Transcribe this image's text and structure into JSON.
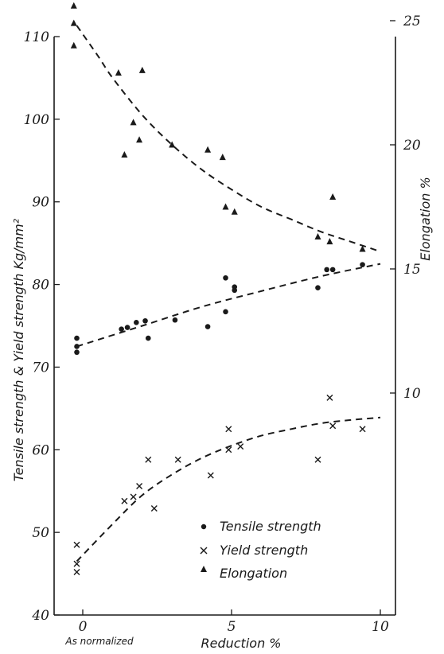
{
  "chart_data": {
    "type": "scatter",
    "title": "",
    "xlabel": "Reduction %",
    "x_sublabel": "As normalized",
    "ylabel_left": "Tensile strength & Yield strength Kg/mm²",
    "ylabel_right": "Elongation %",
    "xlim": [
      -0.5,
      10
    ],
    "ylim_left": [
      40,
      110
    ],
    "ylim_right": [
      5,
      27
    ],
    "x_ticks": [
      "0",
      "5",
      "10"
    ],
    "y_left_ticks": [
      "40",
      "50",
      "60",
      "70",
      "80",
      "90",
      "100",
      "110"
    ],
    "y_right_ticks": [
      "10",
      "15",
      "20",
      "25"
    ],
    "grid": false,
    "legend_position": "bottom-right",
    "series": [
      {
        "name": "Tensile strength",
        "axis": "left",
        "marker": "dot",
        "points": [
          [
            -0.2,
            73.5
          ],
          [
            -0.2,
            72.5
          ],
          [
            -0.2,
            71.8
          ],
          [
            1.3,
            74.6
          ],
          [
            1.5,
            74.8
          ],
          [
            1.8,
            75.4
          ],
          [
            2.1,
            75.6
          ],
          [
            2.2,
            73.5
          ],
          [
            3.1,
            75.7
          ],
          [
            4.2,
            74.9
          ],
          [
            4.8,
            80.8
          ],
          [
            4.8,
            76.7
          ],
          [
            5.1,
            79.7
          ],
          [
            5.1,
            79.3
          ],
          [
            7.9,
            79.6
          ],
          [
            8.2,
            81.8
          ],
          [
            8.4,
            81.8
          ],
          [
            9.4,
            82.4
          ]
        ],
        "fit": [
          [
            -0.2,
            72.5
          ],
          [
            2,
            75
          ],
          [
            4,
            77.3
          ],
          [
            6,
            79.2
          ],
          [
            8,
            81
          ],
          [
            10,
            82.5
          ]
        ]
      },
      {
        "name": "Yield strength",
        "axis": "left",
        "marker": "x",
        "points": [
          [
            -0.2,
            48.5
          ],
          [
            -0.2,
            46.2
          ],
          [
            -0.2,
            45.2
          ],
          [
            1.4,
            53.8
          ],
          [
            1.7,
            54.3
          ],
          [
            1.9,
            55.6
          ],
          [
            2.2,
            58.8
          ],
          [
            2.4,
            52.9
          ],
          [
            3.2,
            58.8
          ],
          [
            4.3,
            56.9
          ],
          [
            4.9,
            62.5
          ],
          [
            4.9,
            60
          ],
          [
            5.3,
            60.4
          ],
          [
            7.9,
            58.8
          ],
          [
            8.3,
            66.3
          ],
          [
            8.4,
            62.9
          ],
          [
            9.4,
            62.5
          ]
        ],
        "fit": [
          [
            -0.2,
            46.5
          ],
          [
            1,
            51
          ],
          [
            2,
            54.5
          ],
          [
            3,
            57
          ],
          [
            4,
            59
          ],
          [
            5,
            60.5
          ],
          [
            6,
            61.7
          ],
          [
            7,
            62.5
          ],
          [
            8,
            63.2
          ],
          [
            9,
            63.6
          ],
          [
            10,
            63.9
          ]
        ]
      },
      {
        "name": "Elongation",
        "axis": "right",
        "marker": "triangle",
        "points": [
          [
            -0.3,
            25.6
          ],
          [
            -0.3,
            24.9
          ],
          [
            -0.3,
            24
          ],
          [
            1.2,
            22.9
          ],
          [
            1.4,
            19.6
          ],
          [
            1.7,
            20.9
          ],
          [
            1.9,
            20.2
          ],
          [
            2.0,
            23
          ],
          [
            3.0,
            20
          ],
          [
            4.2,
            19.8
          ],
          [
            4.7,
            19.5
          ],
          [
            4.8,
            17.5
          ],
          [
            5.1,
            17.3
          ],
          [
            7.9,
            16.3
          ],
          [
            8.3,
            16.1
          ],
          [
            8.4,
            17.9
          ],
          [
            9.4,
            15.8
          ]
        ],
        "fit": [
          [
            -0.2,
            24.8
          ],
          [
            0.5,
            23.6
          ],
          [
            1,
            22.7
          ],
          [
            2,
            21.2
          ],
          [
            3,
            20
          ],
          [
            4,
            19
          ],
          [
            5,
            18.2
          ],
          [
            6,
            17.5
          ],
          [
            7,
            17
          ],
          [
            8,
            16.5
          ],
          [
            9,
            16.1
          ],
          [
            10,
            15.7
          ]
        ]
      }
    ]
  }
}
